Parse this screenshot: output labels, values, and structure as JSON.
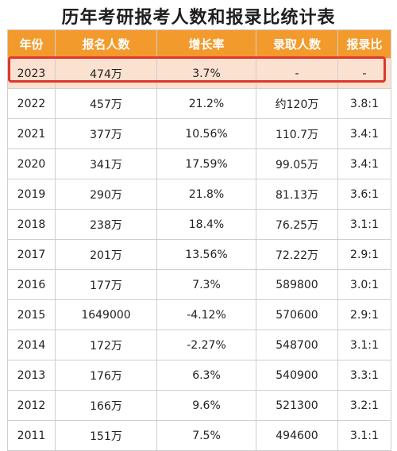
{
  "title": "历年考研报考人数和报录比统计表",
  "headers": [
    "年份",
    "报名人数",
    "增长率",
    "录取人数",
    "报录比"
  ],
  "rows": [
    [
      "2023",
      "474万",
      "3.7%",
      "-",
      "-"
    ],
    [
      "2022",
      "457万",
      "21.2%",
      "约120万",
      "3.8:1"
    ],
    [
      "2021",
      "377万",
      "10.56%",
      "110.7万",
      "3.4:1"
    ],
    [
      "2020",
      "341万",
      "17.59%",
      "99.05万",
      "3.4:1"
    ],
    [
      "2019",
      "290万",
      "21.8%",
      "81.13万",
      "3.6:1"
    ],
    [
      "2018",
      "238万",
      "18.4%",
      "76.25万",
      "3.1:1"
    ],
    [
      "2017",
      "201万",
      "13.56%",
      "72.22万",
      "2.9:1"
    ],
    [
      "2016",
      "177万",
      "7.3%",
      "589800",
      "3.0:1"
    ],
    [
      "2015",
      "1649000",
      "-4.12%",
      "570600",
      "2.9:1"
    ],
    [
      "2014",
      "172万",
      "-2.27%",
      "548700",
      "3.1:1"
    ],
    [
      "2013",
      "176万",
      "6.3%",
      "540900",
      "3.3:1"
    ],
    [
      "2012",
      "166万",
      "9.6%",
      "521300",
      "3.2:1"
    ],
    [
      "2011",
      "151万",
      "7.5%",
      "494600",
      "3.1:1"
    ]
  ],
  "colors": {
    "header_bg": "#f39a2c",
    "highlight_row_bg": "#fbe1cf",
    "highlight_border": "#e0362b"
  }
}
